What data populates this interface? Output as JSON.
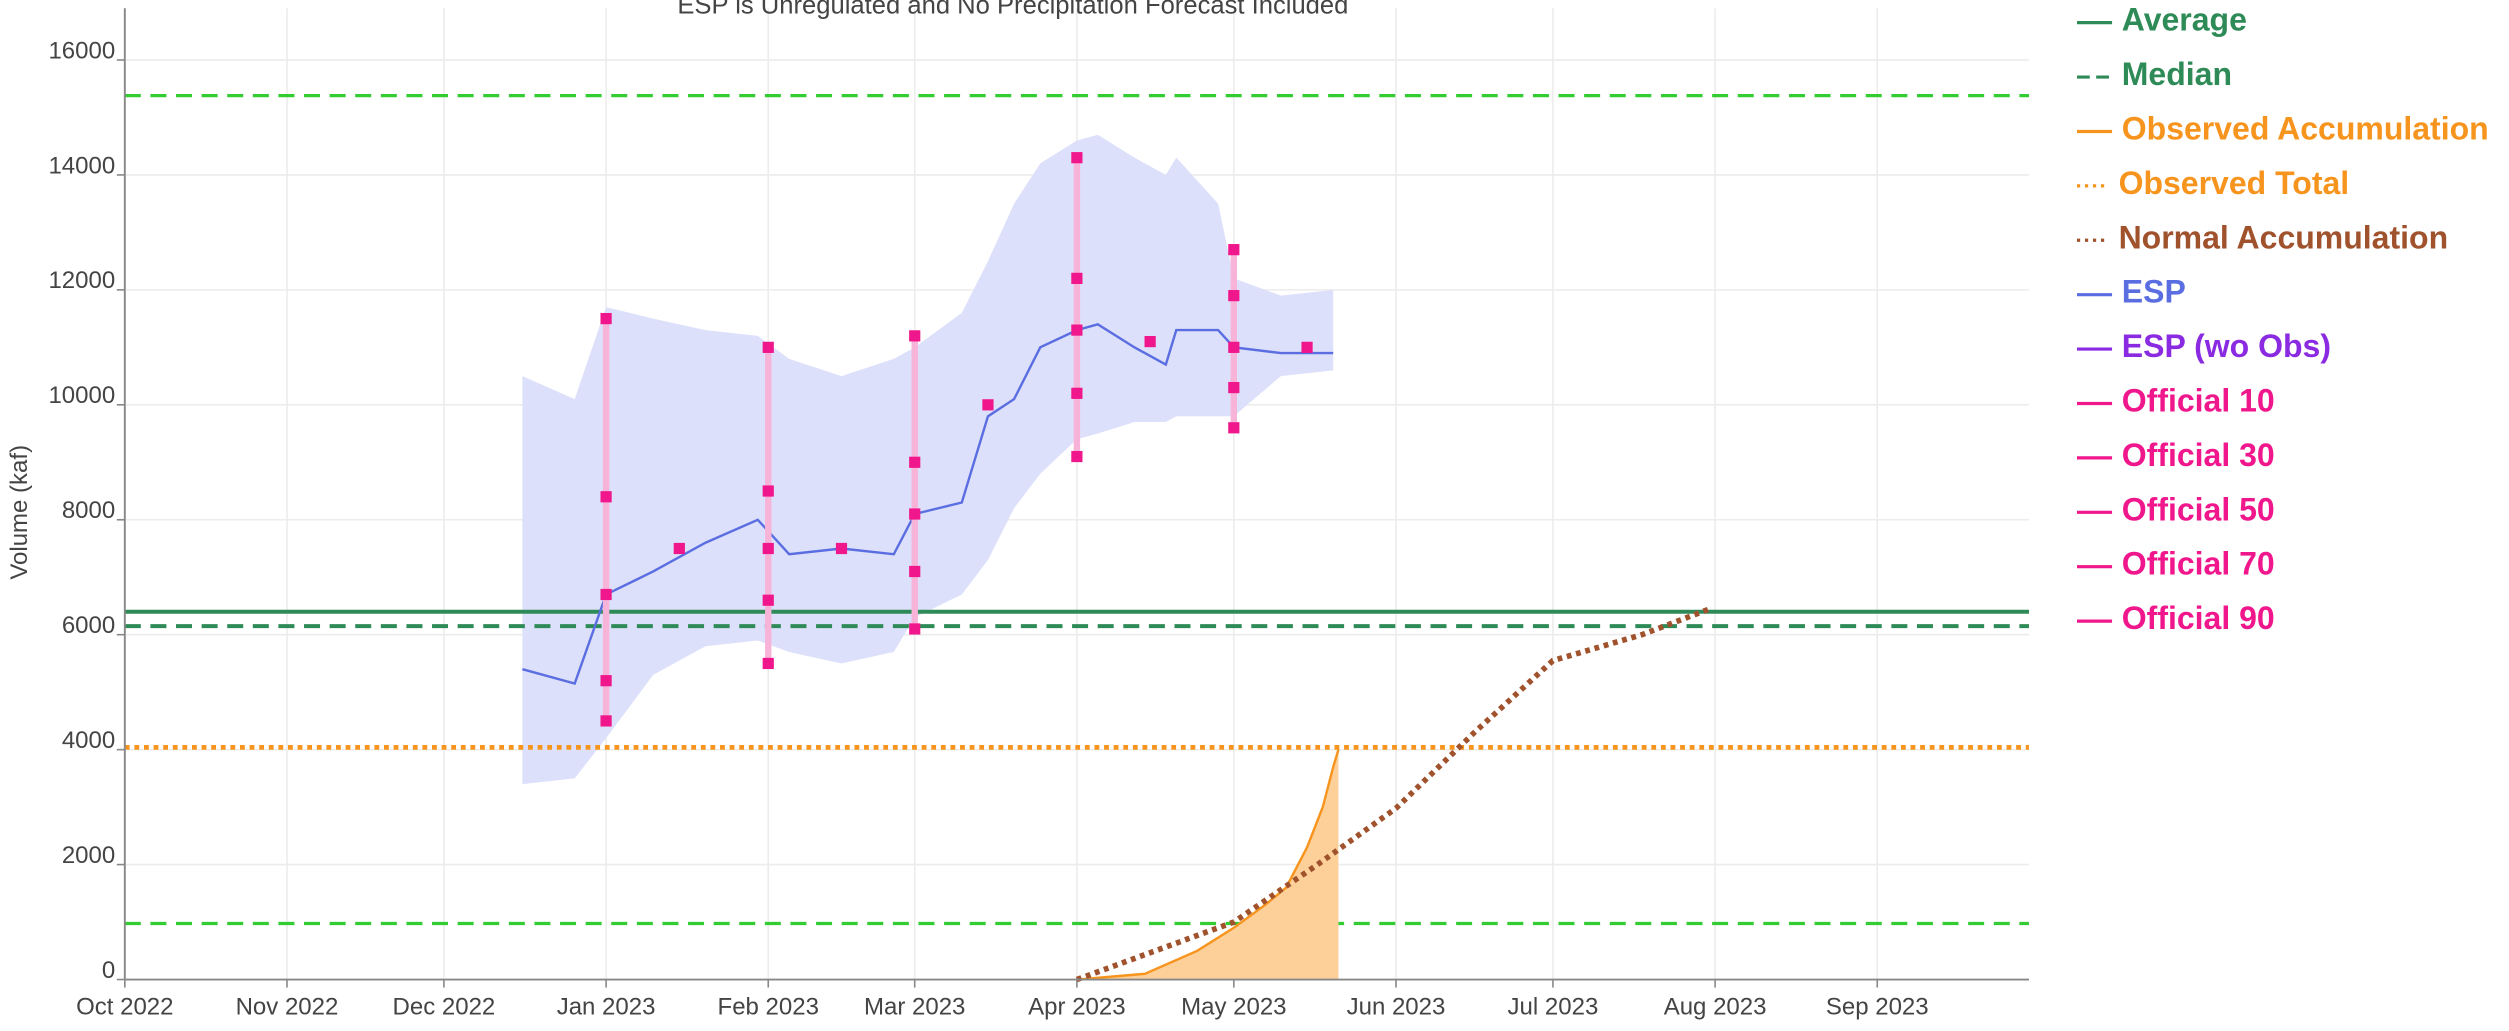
{
  "chart_data": {
    "type": "line",
    "title": "ESP is Unregulated and No Precipitation Forecast Included",
    "y_label": "Volume (kaf)",
    "xlim": [
      0,
      364
    ],
    "xticks": [
      {
        "value": 0,
        "label": "Oct 2022"
      },
      {
        "value": 31,
        "label": "Nov 2022"
      },
      {
        "value": 61,
        "label": "Dec 2022"
      },
      {
        "value": 92,
        "label": "Jan 2023"
      },
      {
        "value": 123,
        "label": "Feb 2023"
      },
      {
        "value": 151,
        "label": "Mar 2023"
      },
      {
        "value": 182,
        "label": "Apr 2023"
      },
      {
        "value": 212,
        "label": "May 2023"
      },
      {
        "value": 243,
        "label": "Jun 2023"
      },
      {
        "value": 273,
        "label": "Jul 2023"
      },
      {
        "value": 304,
        "label": "Aug 2023"
      },
      {
        "value": 335,
        "label": "Sep 2023"
      }
    ],
    "ylim": [
      0,
      16900
    ],
    "yticks": [
      0,
      2000,
      4000,
      6000,
      8000,
      10000,
      12000,
      14000,
      16000
    ],
    "grid": true,
    "reference_lines": [
      {
        "value": 15380,
        "color": "#33cc33",
        "dash": "dash"
      },
      {
        "value": 975,
        "color": "#33cc33",
        "dash": "dash"
      }
    ],
    "series": [
      {
        "name": "Average",
        "color": "#2e8b57",
        "dash": "solid",
        "kind": "hline",
        "value": 6400
      },
      {
        "name": "Median",
        "color": "#2e8b57",
        "dash": "dash",
        "kind": "hline",
        "value": 6150
      },
      {
        "name": "Observed Accumulation",
        "color": "#f7941d",
        "dash": "solid",
        "kind": "area",
        "fill": "#fdd09a",
        "x": [
          182,
          195,
          205,
          212,
          218,
          222,
          226,
          229,
          231,
          232
        ],
        "values": [
          0,
          100,
          500,
          900,
          1300,
          1600,
          2300,
          3000,
          3700,
          4000
        ]
      },
      {
        "name": "Observed Total",
        "color": "#f7941d",
        "dash": "dot",
        "kind": "hline",
        "value": 4040
      },
      {
        "name": "Normal Accumulation",
        "color": "#a0522d",
        "dash": "dot",
        "kind": "line",
        "x": [
          182,
          212,
          228,
          243,
          258,
          273,
          290,
          303
        ],
        "values": [
          0,
          1000,
          2000,
          2980,
          4300,
          5550,
          6000,
          6450
        ]
      },
      {
        "name": "ESP",
        "color": "#5b6ee1",
        "dash": "solid",
        "kind": "line",
        "band_color": "#dde0fa",
        "x": [
          76,
          86,
          92,
          101,
          111,
          121,
          127,
          137,
          147,
          151,
          160,
          165,
          170,
          175,
          182,
          186,
          193,
          199,
          201,
          209,
          212,
          221,
          231
        ],
        "values": [
          5400,
          5150,
          6700,
          7100,
          7600,
          8000,
          7400,
          7500,
          7400,
          8100,
          8300,
          9800,
          10100,
          11000,
          11300,
          11400,
          11000,
          10700,
          11300,
          11300,
          11000,
          10900,
          10900
        ],
        "upper": [
          10500,
          10100,
          11700,
          11500,
          11300,
          11200,
          10800,
          10500,
          10800,
          11000,
          11600,
          12500,
          13500,
          14200,
          14600,
          14700,
          14300,
          14000,
          14300,
          13500,
          12200,
          11900,
          12000
        ],
        "lower": [
          3400,
          3500,
          4200,
          5300,
          5800,
          5900,
          5700,
          5500,
          5700,
          6300,
          6700,
          7300,
          8200,
          8800,
          9400,
          9500,
          9700,
          9700,
          9800,
          9800,
          9800,
          10500,
          10600
        ]
      },
      {
        "name": "ESP (wo Obs)",
        "color": "#8a2be2",
        "dash": "solid",
        "kind": "line",
        "x": [],
        "values": []
      },
      {
        "name": "Official 10",
        "color": "#f0168c",
        "dash": "solid",
        "kind": "markers",
        "x": [
          92,
          106,
          123,
          137,
          151,
          165,
          182,
          196,
          212,
          226
        ],
        "values": [
          11500,
          null,
          11000,
          null,
          11200,
          null,
          14300,
          null,
          12700,
          null
        ]
      },
      {
        "name": "Official 30",
        "color": "#f0168c",
        "dash": "solid",
        "kind": "markers",
        "x": [
          92,
          106,
          123,
          137,
          151,
          165,
          182,
          196,
          212,
          226
        ],
        "values": [
          8400,
          null,
          8500,
          null,
          9000,
          null,
          12200,
          null,
          11900,
          null
        ]
      },
      {
        "name": "Official 50",
        "color": "#f0168c",
        "dash": "solid",
        "kind": "markers",
        "x": [
          92,
          106,
          123,
          137,
          151,
          165,
          182,
          196,
          212,
          226
        ],
        "values": [
          6700,
          7500,
          7500,
          7500,
          8100,
          10000,
          11300,
          11100,
          11000,
          11000
        ]
      },
      {
        "name": "Official 70",
        "color": "#f0168c",
        "dash": "solid",
        "kind": "markers",
        "x": [
          92,
          106,
          123,
          137,
          151,
          165,
          182,
          196,
          212,
          226
        ],
        "values": [
          5200,
          null,
          6600,
          null,
          7100,
          null,
          10200,
          null,
          10300,
          null
        ]
      },
      {
        "name": "Official 90",
        "color": "#f0168c",
        "dash": "solid",
        "kind": "markers",
        "x": [
          92,
          106,
          123,
          137,
          151,
          165,
          182,
          196,
          212,
          226
        ],
        "values": [
          4500,
          null,
          5500,
          null,
          6100,
          null,
          9100,
          null,
          9600,
          null
        ]
      }
    ]
  }
}
